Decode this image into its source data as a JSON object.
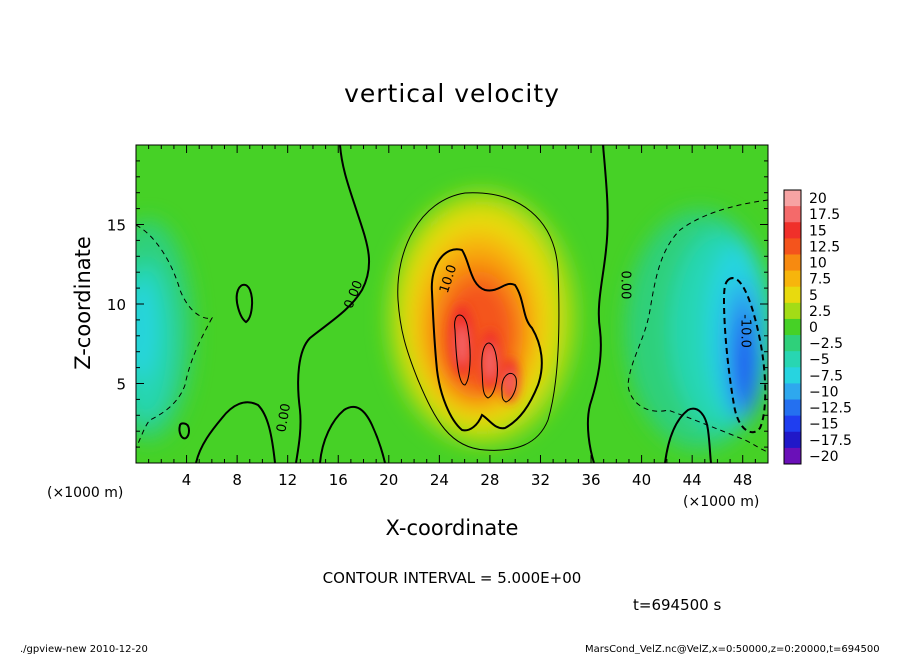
{
  "chart_data": {
    "type": "heatmap",
    "title": "vertical velocity",
    "xlabel": "X-coordinate",
    "ylabel": "Z-coordinate",
    "x_unit": "(×1000 m)",
    "y_unit": "(×1000 m)",
    "xlim": [
      0,
      50
    ],
    "ylim": [
      0,
      20
    ],
    "x_ticks": [
      4,
      8,
      12,
      16,
      20,
      24,
      28,
      32,
      36,
      40,
      44,
      48
    ],
    "y_ticks": [
      5,
      10,
      15
    ],
    "colorbar": {
      "labels": [
        "20",
        "17.5",
        "15",
        "12.5",
        "10",
        "7.5",
        "5",
        "2.5",
        "0",
        "−2.5",
        "−5",
        "−7.5",
        "−10",
        "−12.5",
        "−15",
        "−17.5",
        "−20"
      ],
      "values": [
        20,
        17.5,
        15,
        12.5,
        10,
        7.5,
        5,
        2.5,
        0,
        -2.5,
        -5,
        -7.5,
        -10,
        -12.5,
        -15,
        -17.5,
        -20
      ],
      "colors": [
        "#f7a3a3",
        "#f46a6a",
        "#f0302a",
        "#f4541c",
        "#f78a10",
        "#f7b50c",
        "#e8da0e",
        "#a3dc16",
        "#46d126",
        "#2fd07a",
        "#28d6b2",
        "#27d4e0",
        "#2ea8ee",
        "#2470f0",
        "#1f3ef0",
        "#2018c8",
        "#6a10b8"
      ]
    },
    "contour_labels": [
      {
        "text": "10.0",
        "x": 25,
        "z": 11.5
      },
      {
        "text": "0.00",
        "x": 17.5,
        "z": 10.5
      },
      {
        "text": "0.00",
        "x": 38.4,
        "z": 11.2
      },
      {
        "text": "0.00",
        "x": 12,
        "z": 2.8
      },
      {
        "text": "-10.0",
        "x": 47.9,
        "z": 8.3
      }
    ],
    "features": [
      {
        "kind": "updraft",
        "x": 27,
        "z": 7,
        "peak": 17.5
      },
      {
        "kind": "downdraft",
        "x": 47.9,
        "z": 5.5,
        "peak": -12.5
      }
    ],
    "contour_interval_text": "CONTOUR INTERVAL = 5.000E+00",
    "time_text": "t=694500 s",
    "footer_left": "./gpview-new 2010-12-20",
    "footer_right": "MarsCond_VelZ.nc@VelZ,x=0:50000,z=0:20000,t=694500"
  }
}
